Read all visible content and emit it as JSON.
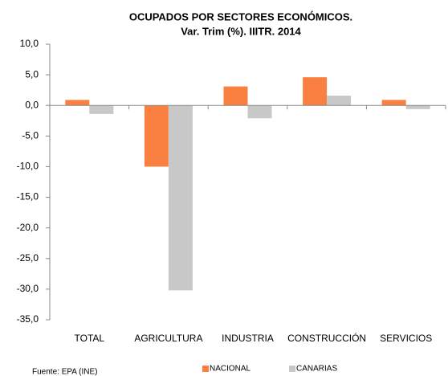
{
  "chart_data": {
    "type": "bar",
    "title": "OCUPADOS POR SECTORES ECONÓMICOS.",
    "subtitle": "Var. Trim (%). IIITR. 2014",
    "categories": [
      "TOTAL",
      "AGRICULTURA",
      "INDUSTRIA",
      "CONSTRUCCIÓN",
      "SERVICIOS"
    ],
    "series": [
      {
        "name": "NACIONAL",
        "color": "#f98040",
        "values": [
          0.9,
          -10.0,
          3.1,
          4.6,
          0.9
        ]
      },
      {
        "name": "CANARIAS",
        "color": "#c8c8c8",
        "values": [
          -1.4,
          -30.2,
          -2.1,
          1.6,
          -0.6
        ]
      }
    ],
    "ylim": [
      -35,
      10
    ],
    "yticks": [
      {
        "value": -35,
        "label": "-35,0"
      },
      {
        "value": -30,
        "label": "-30,0"
      },
      {
        "value": -25,
        "label": "-25,0"
      },
      {
        "value": -20,
        "label": "-20,0"
      },
      {
        "value": -15,
        "label": "-15,0"
      },
      {
        "value": -10,
        "label": "-10,0"
      },
      {
        "value": -5,
        "label": "-5,0"
      },
      {
        "value": 0,
        "label": "0,0"
      },
      {
        "value": 5,
        "label": "5,0"
      },
      {
        "value": 10,
        "label": "10,0"
      }
    ],
    "legend": "bottom",
    "source": "Fuente: EPA (INE)"
  }
}
